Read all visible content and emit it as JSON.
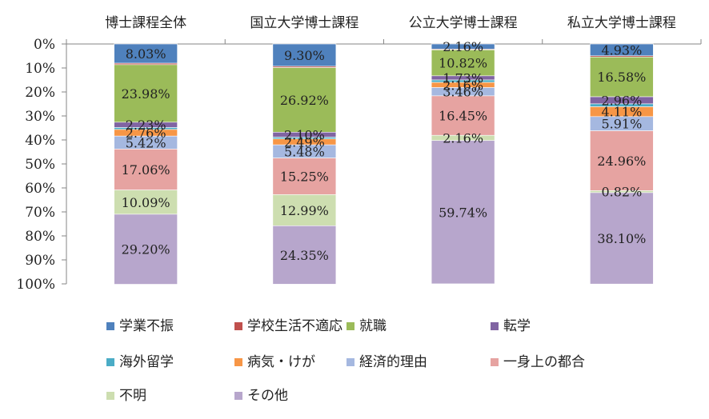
{
  "chart_data": {
    "type": "bar",
    "stacked": true,
    "orientation": "vertical",
    "y_axis_inverted": true,
    "ylim": [
      0,
      100
    ],
    "y_ticks": [
      "0%",
      "10%",
      "20%",
      "30%",
      "40%",
      "50%",
      "60%",
      "70%",
      "80%",
      "90%",
      "100%"
    ],
    "categories": [
      "博士課程全体",
      "国立大学博士課程",
      "公立大学博士課程",
      "私立大学博士課程"
    ],
    "category_axis_position": "top",
    "grid": false,
    "legend_position": "bottom",
    "series": [
      {
        "name": "学業不振",
        "color": "#4f81bd",
        "values": [
          8.03,
          9.3,
          2.16,
          4.93
        ],
        "labels": [
          "8.03%",
          "9.30%",
          "2.16%",
          "4.93%"
        ]
      },
      {
        "name": "学校生活不適応",
        "color": "#c0504d",
        "values": [
          0.6,
          0.55,
          0.3,
          0.5
        ],
        "labels": [
          "",
          "",
          "",
          ""
        ]
      },
      {
        "name": "就職",
        "color": "#9bbb59",
        "values": [
          23.98,
          26.92,
          10.82,
          16.58
        ],
        "labels": [
          "23.98%",
          "26.92%",
          "10.82%",
          "16.58%"
        ]
      },
      {
        "name": "転学",
        "color": "#8064a2",
        "values": [
          2.23,
          2.1,
          1.73,
          2.96
        ],
        "labels": [
          "2.23%",
          "2.10%",
          "1.73%",
          "2.96%"
        ]
      },
      {
        "name": "海外留学",
        "color": "#4bacc6",
        "values": [
          0.8,
          0.7,
          1.0,
          1.2
        ],
        "labels": [
          "",
          "",
          "",
          ""
        ]
      },
      {
        "name": "病気・けが",
        "color": "#f79646",
        "values": [
          2.76,
          2.49,
          2.16,
          4.11
        ],
        "labels": [
          "2.76%",
          "2.49%",
          "2.16%",
          "4.11%"
        ]
      },
      {
        "name": "経済的理由",
        "color": "#a5b8e0",
        "values": [
          5.42,
          5.48,
          3.46,
          5.91
        ],
        "labels": [
          "5.42%",
          "5.48%",
          "3.46%",
          "5.91%"
        ]
      },
      {
        "name": "一身上の都合",
        "color": "#e6a3a1",
        "values": [
          17.06,
          15.25,
          16.45,
          24.96
        ],
        "labels": [
          "17.06%",
          "15.25%",
          "16.45%",
          "24.96%"
        ]
      },
      {
        "name": "不明",
        "color": "#cddeb0",
        "values": [
          10.09,
          12.99,
          2.16,
          0.82
        ],
        "labels": [
          "10.09%",
          "12.99%",
          "2.16%",
          "0.82%"
        ]
      },
      {
        "name": "その他",
        "color": "#b7a6cc",
        "values": [
          29.2,
          24.35,
          59.74,
          38.1
        ],
        "labels": [
          "29.20%",
          "24.35%",
          "59.74%",
          "38.10%"
        ]
      }
    ]
  }
}
